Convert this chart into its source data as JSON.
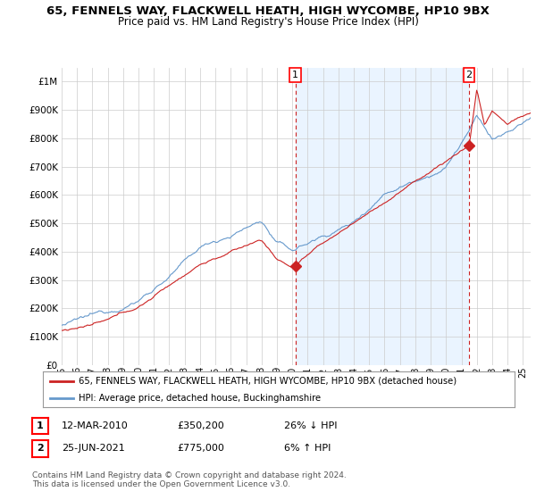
{
  "title": "65, FENNELS WAY, FLACKWELL HEATH, HIGH WYCOMBE, HP10 9BX",
  "subtitle": "Price paid vs. HM Land Registry's House Price Index (HPI)",
  "ylabel_ticks": [
    "£0",
    "£100K",
    "£200K",
    "£300K",
    "£400K",
    "£500K",
    "£600K",
    "£700K",
    "£800K",
    "£900K",
    "£1M"
  ],
  "ytick_vals": [
    0,
    100000,
    200000,
    300000,
    400000,
    500000,
    600000,
    700000,
    800000,
    900000,
    1000000
  ],
  "ylim": [
    0,
    1050000
  ],
  "xlim_start": 1995,
  "xlim_end": 2025.5,
  "hpi_color": "#6699cc",
  "price_color": "#cc2222",
  "shade_color": "#ddeeff",
  "marker1_x": 2010.2,
  "marker1_y": 350200,
  "marker2_x": 2021.5,
  "marker2_y": 775000,
  "legend_property_label": "65, FENNELS WAY, FLACKWELL HEATH, HIGH WYCOMBE, HP10 9BX (detached house)",
  "legend_hpi_label": "HPI: Average price, detached house, Buckinghamshire",
  "table_row1": [
    "1",
    "12-MAR-2010",
    "£350,200",
    "26% ↓ HPI"
  ],
  "table_row2": [
    "2",
    "25-JUN-2021",
    "£775,000",
    "6% ↑ HPI"
  ],
  "footnote": "Contains HM Land Registry data © Crown copyright and database right 2024.\nThis data is licensed under the Open Government Licence v3.0.",
  "bg_color": "#ffffff",
  "grid_color": "#cccccc",
  "title_fontsize": 9.5,
  "subtitle_fontsize": 8.5,
  "axis_fontsize": 7.5
}
